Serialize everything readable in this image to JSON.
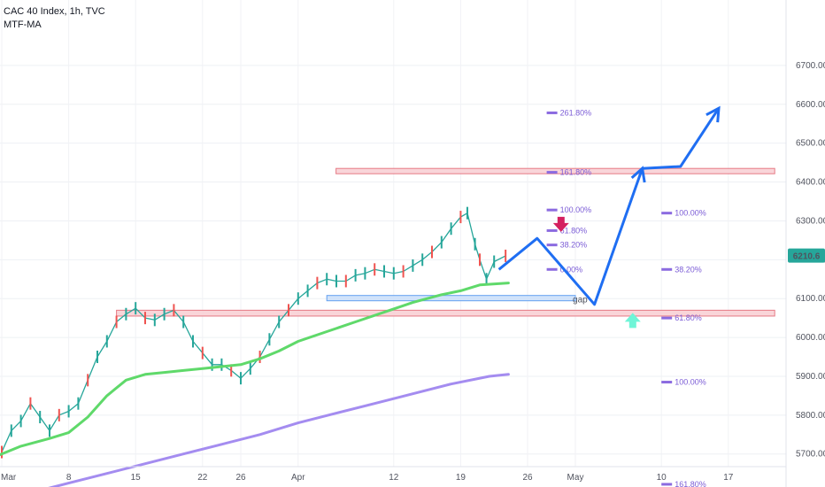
{
  "header": {
    "symbol_line": "CAC 40 Index, 1h, TVC",
    "indicator": "MTF-MA"
  },
  "price_badge": "6210.6",
  "gap_label": "gap",
  "colors": {
    "price_line": "#26a69a",
    "ma_fast": "#5fd96a",
    "ma_slow": "#a48cf0",
    "projection": "#1f6ef2",
    "zone_fill": "#f9d3d8",
    "zone_border": "#e5737f",
    "gap_fill": "#cfe2fb",
    "gap_border": "#5b9cf0",
    "fib": "#8b6be0",
    "arrow_down": "#d4205f",
    "arrow_up": "#6ff5d7"
  },
  "chart_data": {
    "type": "line",
    "title": "CAC 40 Index, 1h, TVC",
    "x_axis": {
      "ticks": [
        "Mar",
        "8",
        "15",
        "22",
        "26",
        "Apr",
        "12",
        "19",
        "26",
        "May",
        "10",
        "17"
      ],
      "tick_days": [
        1,
        8,
        15,
        22,
        26,
        32,
        42,
        49,
        56,
        61,
        70,
        77
      ]
    },
    "y_axis": {
      "ticks": [
        5600,
        5700,
        5800,
        5900,
        6000,
        6100,
        6200,
        6300,
        6400,
        6500,
        6600,
        6700
      ],
      "tick_labels": [
        "5600.00",
        "5700.00",
        "5800.00",
        "5900.00",
        "6000.00",
        "6100.00",
        "6200.00",
        "6300.00",
        "6400.00",
        "6500.00",
        "6600.00",
        "6700.00"
      ],
      "ylim": [
        5580,
        6745
      ]
    },
    "last_price": 6210.6,
    "series": [
      {
        "name": "CAC 40 Index",
        "points": [
          [
            1,
            5705
          ],
          [
            2,
            5760
          ],
          [
            3,
            5785
          ],
          [
            4,
            5830
          ],
          [
            5,
            5795
          ],
          [
            6,
            5760
          ],
          [
            7,
            5800
          ],
          [
            8,
            5810
          ],
          [
            9,
            5830
          ],
          [
            10,
            5890
          ],
          [
            11,
            5950
          ],
          [
            12,
            5990
          ],
          [
            13,
            6040
          ],
          [
            14,
            6060
          ],
          [
            15,
            6075
          ],
          [
            16,
            6050
          ],
          [
            17,
            6045
          ],
          [
            18,
            6060
          ],
          [
            19,
            6070
          ],
          [
            20,
            6040
          ],
          [
            21,
            5990
          ],
          [
            22,
            5960
          ],
          [
            23,
            5930
          ],
          [
            24,
            5930
          ],
          [
            25,
            5915
          ],
          [
            26,
            5895
          ],
          [
            27,
            5920
          ],
          [
            28,
            5950
          ],
          [
            29,
            5995
          ],
          [
            30,
            6040
          ],
          [
            31,
            6070
          ],
          [
            32,
            6100
          ],
          [
            33,
            6120
          ],
          [
            34,
            6140
          ],
          [
            35,
            6150
          ],
          [
            36,
            6145
          ],
          [
            37,
            6145
          ],
          [
            38,
            6160
          ],
          [
            39,
            6165
          ],
          [
            40,
            6175
          ],
          [
            41,
            6170
          ],
          [
            42,
            6165
          ],
          [
            43,
            6170
          ],
          [
            44,
            6185
          ],
          [
            45,
            6200
          ],
          [
            46,
            6220
          ],
          [
            47,
            6245
          ],
          [
            48,
            6280
          ],
          [
            49,
            6310
          ],
          [
            49.7,
            6320
          ],
          [
            50.5,
            6240
          ],
          [
            51,
            6200
          ],
          [
            51.7,
            6150
          ],
          [
            52.5,
            6195
          ],
          [
            53.7,
            6210
          ]
        ]
      },
      {
        "name": "MA fast",
        "points": [
          [
            0,
            5690
          ],
          [
            3,
            5720
          ],
          [
            6,
            5740
          ],
          [
            8,
            5755
          ],
          [
            10,
            5795
          ],
          [
            12,
            5850
          ],
          [
            14,
            5890
          ],
          [
            16,
            5905
          ],
          [
            18,
            5910
          ],
          [
            20,
            5915
          ],
          [
            22,
            5920
          ],
          [
            24,
            5925
          ],
          [
            26,
            5930
          ],
          [
            28,
            5945
          ],
          [
            30,
            5965
          ],
          [
            32,
            5990
          ],
          [
            35,
            6015
          ],
          [
            38,
            6040
          ],
          [
            41,
            6065
          ],
          [
            44,
            6090
          ],
          [
            47,
            6110
          ],
          [
            49,
            6120
          ],
          [
            51,
            6135
          ],
          [
            54,
            6140
          ]
        ]
      },
      {
        "name": "MA slow",
        "points": [
          [
            0,
            5580
          ],
          [
            4,
            5600
          ],
          [
            8,
            5625
          ],
          [
            12,
            5650
          ],
          [
            16,
            5675
          ],
          [
            20,
            5700
          ],
          [
            24,
            5725
          ],
          [
            28,
            5750
          ],
          [
            32,
            5780
          ],
          [
            36,
            5805
          ],
          [
            40,
            5830
          ],
          [
            44,
            5855
          ],
          [
            48,
            5880
          ],
          [
            52,
            5900
          ],
          [
            54,
            5905
          ]
        ]
      }
    ],
    "projection_path": [
      [
        53,
        6175
      ],
      [
        57,
        6255
      ],
      [
        63,
        6085
      ],
      [
        68,
        6435
      ],
      [
        72,
        6440
      ],
      [
        76,
        6590
      ]
    ],
    "zones": [
      {
        "kind": "resistance",
        "x_range": [
          13,
          80
        ],
        "y_range": [
          6425,
          6435
        ]
      },
      {
        "kind": "support",
        "x_range": [
          13,
          80
        ],
        "y_range": [
          6055,
          6070
        ]
      },
      {
        "kind": "gap",
        "x_range": [
          35,
          61
        ],
        "y_range": [
          6098,
          6108
        ]
      }
    ],
    "fib_sets": [
      {
        "x_range": [
          58,
          61
        ],
        "levels": [
          {
            "label": "261.80%",
            "price": 6578
          },
          {
            "label": "161.80%",
            "price": 6425
          },
          {
            "label": "100.00%",
            "price": 6328
          },
          {
            "label": "61.80%",
            "price": 6275
          },
          {
            "label": "38.20%",
            "price": 6238
          },
          {
            "label": "0.00%",
            "price": 6175
          }
        ]
      },
      {
        "x_range": [
          70,
          73
        ],
        "levels": [
          {
            "label": "100.00%",
            "price": 6320
          },
          {
            "label": "38.20%",
            "price": 6175
          },
          {
            "label": "61.80%",
            "price": 6050
          },
          {
            "label": "100.00%",
            "price": 5885
          },
          {
            "label": "161.80%",
            "price": 5622
          }
        ]
      }
    ],
    "annotations": [
      {
        "text": "gap",
        "x": 61.5,
        "y": 6090
      },
      {
        "kind": "arrow-down",
        "x": 59.5,
        "y": 6290
      },
      {
        "kind": "arrow-up",
        "x": 67,
        "y": 6045
      }
    ]
  }
}
